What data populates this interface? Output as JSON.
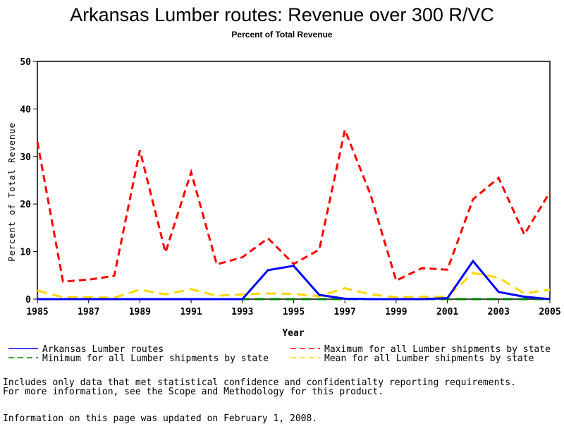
{
  "chart_data": {
    "type": "line",
    "title": "Arkansas Lumber routes: Revenue over 300 R/VC",
    "subtitle": "Percent of Total Revenue",
    "xlabel": "Year",
    "ylabel": "Percent of Total Revenue",
    "xlim": [
      1985,
      2005
    ],
    "ylim": [
      0,
      50
    ],
    "xticks": [
      "1985",
      "1987",
      "1989",
      "1991",
      "1993",
      "1995",
      "1997",
      "1999",
      "2001",
      "2003",
      "2005"
    ],
    "yticks": [
      "0",
      "10",
      "20",
      "30",
      "40",
      "50"
    ],
    "x": [
      1985,
      1986,
      1987,
      1988,
      1989,
      1990,
      1991,
      1992,
      1993,
      1994,
      1995,
      1996,
      1997,
      1998,
      1999,
      2000,
      2001,
      2002,
      2003,
      2004,
      2005
    ],
    "series": [
      {
        "name": "Arkansas Lumber routes",
        "color": "#0000ff",
        "dash": "none",
        "values": [
          0,
          0,
          0,
          0,
          0,
          0,
          0,
          0,
          0,
          6.1,
          7.0,
          0.9,
          0.1,
          0,
          0,
          0,
          0.2,
          8.0,
          1.5,
          0.5,
          0
        ]
      },
      {
        "name": "Maximum for all Lumber shipments by state",
        "color": "#ff0000",
        "dash": "10,6",
        "values": [
          33.1,
          3.7,
          4.1,
          4.9,
          31.3,
          9.8,
          26.7,
          7.3,
          8.8,
          12.8,
          7.4,
          10.4,
          35.6,
          22.0,
          3.9,
          6.5,
          6.2,
          21.0,
          25.5,
          13.6,
          22.5
        ]
      },
      {
        "name": "Minimum for all Lumber shipments by state",
        "color": "#008000",
        "dash": "14,8",
        "values": [
          0,
          0,
          0,
          0,
          0,
          0,
          0,
          0,
          0,
          0,
          0,
          0,
          0,
          0,
          0,
          0,
          0,
          0,
          0,
          0,
          0
        ]
      },
      {
        "name": "Mean for all Lumber shipments by state",
        "color": "#ffd700",
        "dash": "14,8",
        "values": [
          1.8,
          0.4,
          0.4,
          0.3,
          2.0,
          1.0,
          2.1,
          0.7,
          1.0,
          1.2,
          1.1,
          0.6,
          2.3,
          1.0,
          0.4,
          0.5,
          0.5,
          5.5,
          4.5,
          1.2,
          2.0
        ]
      }
    ],
    "legend": "bottom"
  },
  "notes": {
    "line1": "Includes only data that met statistical confidence and confidentialty reporting requirements.",
    "line2": "For more information, see the Scope and Methodology for this product.",
    "updated": "Information on this page was updated on February 1, 2008."
  }
}
